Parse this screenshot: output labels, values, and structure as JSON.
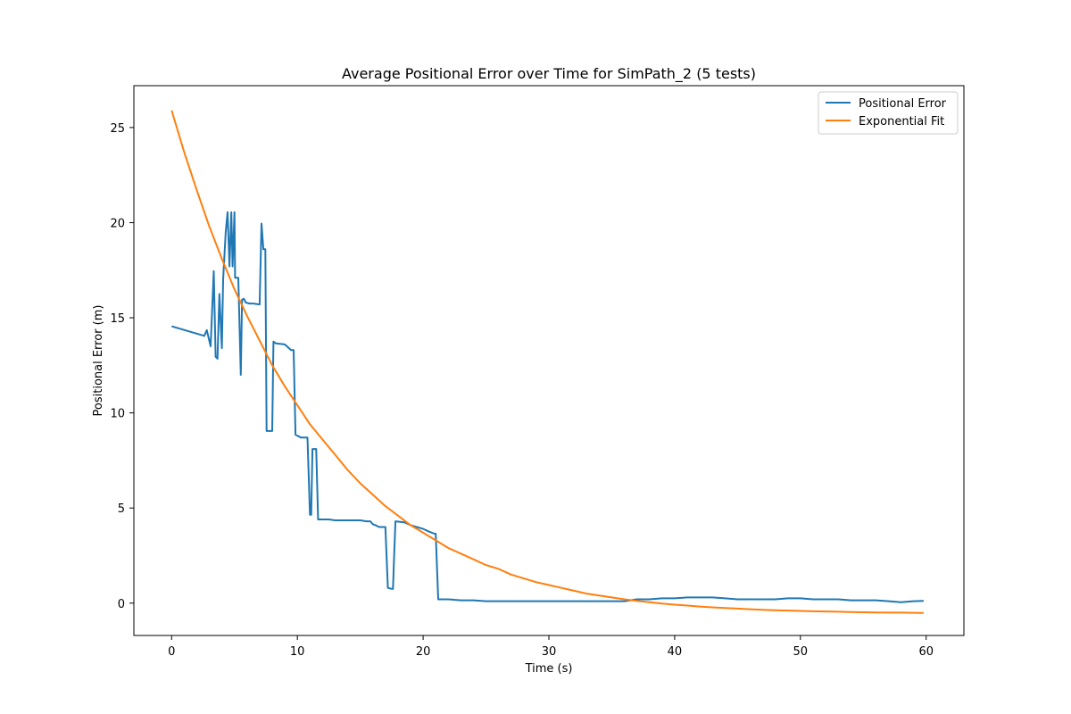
{
  "chart_data": {
    "type": "line",
    "title": "Average Positional Error over Time for SimPath_2 (5 tests)",
    "xlabel": "Time (s)",
    "ylabel": "Positional Error (m)",
    "xlim": [
      -3,
      63
    ],
    "ylim": [
      -1.7,
      27.2
    ],
    "xticks": [
      0,
      10,
      20,
      30,
      40,
      50,
      60
    ],
    "yticks": [
      0,
      5,
      10,
      15,
      20,
      25
    ],
    "grid": false,
    "legend_position": "top-right",
    "series": [
      {
        "name": "Positional Error",
        "color": "#1f77b4",
        "x": [
          0,
          2.6,
          2.8,
          3.1,
          3.35,
          3.5,
          3.65,
          3.8,
          4.0,
          4.1,
          4.3,
          4.45,
          4.6,
          4.75,
          4.85,
          5.0,
          5.05,
          5.1,
          5.3,
          5.5,
          5.6,
          5.75,
          5.9,
          6.2,
          6.5,
          7.0,
          7.15,
          7.3,
          7.45,
          7.55,
          7.7,
          8.0,
          8.1,
          8.3,
          9.0,
          9.5,
          9.7,
          9.85,
          10.3,
          10.8,
          11.0,
          11.1,
          11.2,
          11.35,
          11.5,
          11.65,
          11.8,
          12.5,
          13.0,
          14.0,
          15.0,
          15.5,
          15.8,
          16.0,
          16.2,
          16.5,
          16.9,
          17.0,
          17.2,
          17.5,
          17.6,
          17.7,
          17.8,
          18.5,
          19.0,
          19.5,
          20.0,
          20.5,
          20.9,
          21.0,
          21.2,
          22.0,
          23.0,
          24.0,
          25.0,
          26.0,
          27.0,
          28.0,
          29.0,
          30.0,
          31.0,
          32.0,
          33.0,
          34.0,
          35.0,
          36.0,
          37.0,
          38.0,
          39.0,
          40.0,
          41.0,
          42.0,
          43.0,
          44.0,
          45.0,
          46.0,
          47.0,
          48.0,
          49.0,
          50.0,
          51.0,
          52.0,
          53.0,
          54.0,
          55.0,
          56.0,
          57.0,
          58.0,
          59.0,
          59.8
        ],
        "values": [
          14.55,
          14.05,
          14.35,
          13.5,
          17.45,
          12.95,
          12.85,
          16.25,
          13.4,
          17.0,
          19.5,
          20.55,
          17.7,
          20.55,
          17.7,
          20.55,
          17.1,
          17.1,
          17.1,
          12.0,
          15.95,
          16.0,
          15.8,
          15.75,
          15.75,
          15.7,
          19.95,
          18.6,
          18.6,
          9.05,
          9.05,
          9.05,
          13.75,
          13.65,
          13.6,
          13.3,
          13.3,
          8.85,
          8.7,
          8.7,
          4.65,
          4.65,
          8.1,
          8.1,
          8.1,
          4.4,
          4.4,
          4.4,
          4.35,
          4.35,
          4.35,
          4.3,
          4.3,
          4.15,
          4.1,
          4.0,
          4.0,
          4.0,
          0.8,
          0.75,
          0.75,
          2.6,
          4.3,
          4.25,
          4.1,
          4.0,
          3.9,
          3.75,
          3.65,
          3.65,
          0.2,
          0.2,
          0.15,
          0.15,
          0.1,
          0.1,
          0.1,
          0.1,
          0.1,
          0.1,
          0.1,
          0.1,
          0.1,
          0.1,
          0.1,
          0.1,
          0.2,
          0.2,
          0.25,
          0.25,
          0.3,
          0.3,
          0.3,
          0.25,
          0.2,
          0.2,
          0.2,
          0.2,
          0.25,
          0.25,
          0.2,
          0.2,
          0.2,
          0.15,
          0.15,
          0.15,
          0.1,
          0.05,
          0.1,
          0.12
        ]
      },
      {
        "name": "Exponential Fit",
        "color": "#ff7f0e",
        "x": [
          0,
          1,
          2,
          3,
          4,
          5,
          6,
          7,
          8,
          9,
          10,
          11,
          12,
          13,
          14,
          15,
          16,
          17,
          18,
          19,
          20,
          21,
          22,
          23,
          24,
          25,
          26,
          27,
          28,
          29,
          30,
          31,
          32,
          33,
          34,
          35,
          36,
          37,
          38,
          39,
          40,
          41,
          42,
          43,
          44,
          45,
          46,
          47,
          48,
          49,
          50,
          51,
          52,
          53,
          54,
          55,
          56,
          57,
          58,
          59,
          59.8
        ],
        "values": [
          25.9,
          23.7,
          21.7,
          19.8,
          18.1,
          16.5,
          15.1,
          13.8,
          12.5,
          11.4,
          10.4,
          9.4,
          8.6,
          7.8,
          7.0,
          6.3,
          5.7,
          5.1,
          4.6,
          4.1,
          3.7,
          3.3,
          2.9,
          2.6,
          2.3,
          2.0,
          1.8,
          1.5,
          1.3,
          1.1,
          0.95,
          0.8,
          0.65,
          0.5,
          0.4,
          0.3,
          0.2,
          0.12,
          0.05,
          -0.02,
          -0.08,
          -0.13,
          -0.18,
          -0.22,
          -0.26,
          -0.29,
          -0.32,
          -0.35,
          -0.37,
          -0.39,
          -0.41,
          -0.43,
          -0.44,
          -0.45,
          -0.47,
          -0.48,
          -0.49,
          -0.5,
          -0.5,
          -0.51,
          -0.52
        ]
      }
    ]
  }
}
